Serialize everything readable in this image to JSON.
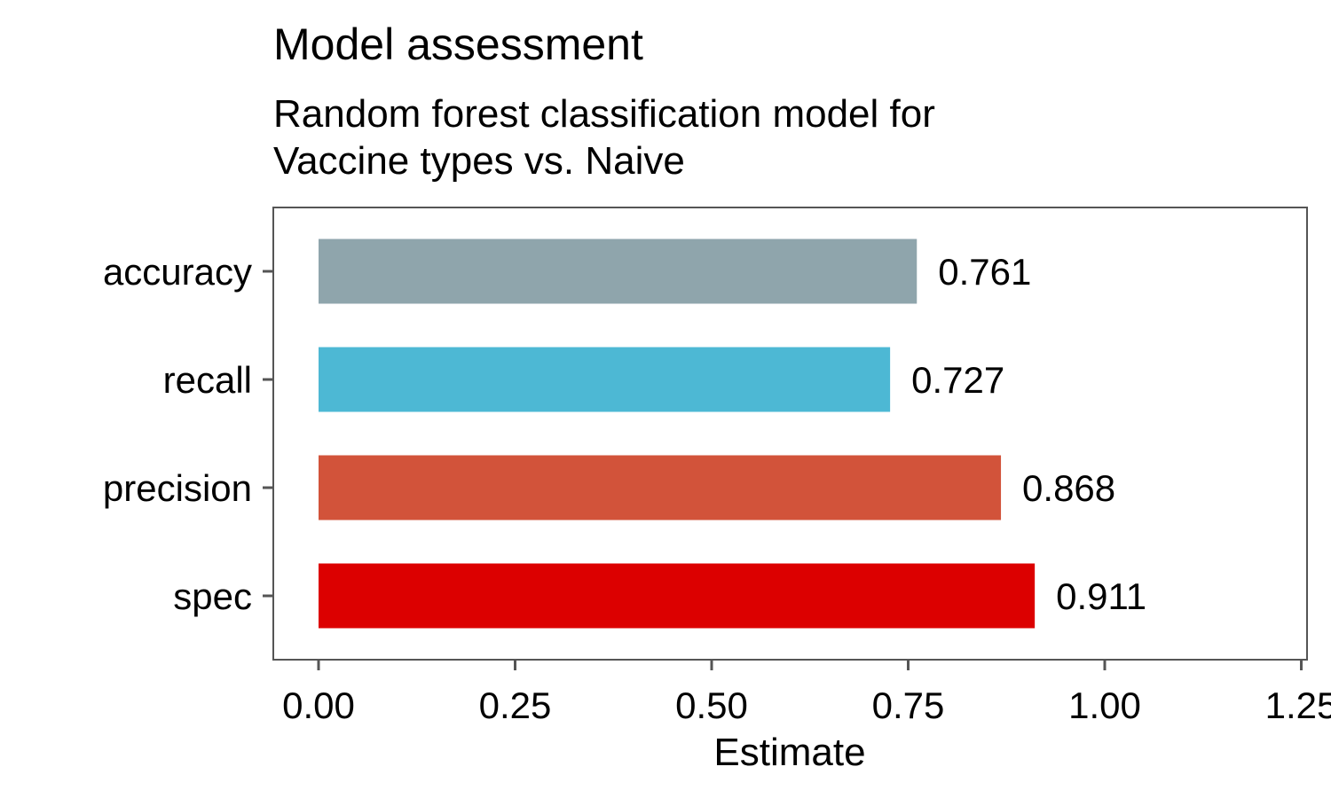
{
  "chart_data": {
    "type": "bar",
    "orientation": "horizontal",
    "title": "Model assessment",
    "subtitle_lines": [
      "Random forest classification model for",
      "Vaccine types vs. Naive"
    ],
    "xlabel": "Estimate",
    "ylabel": "",
    "xlim": [
      0,
      1.25
    ],
    "x_ticks": [
      0,
      0.25,
      0.5,
      0.75,
      1.0,
      1.25
    ],
    "x_tick_labels": [
      "0.00",
      "0.25",
      "0.50",
      "0.75",
      "1.00",
      "1.25"
    ],
    "categories": [
      "accuracy",
      "recall",
      "precision",
      "spec"
    ],
    "values": [
      0.761,
      0.727,
      0.868,
      0.911
    ],
    "value_labels": [
      "0.761",
      "0.727",
      "0.868",
      "0.911"
    ],
    "colors": [
      "#8fa5ac",
      "#4db8d4",
      "#d2533a",
      "#dc0000"
    ],
    "grid": false,
    "legend": "none"
  }
}
